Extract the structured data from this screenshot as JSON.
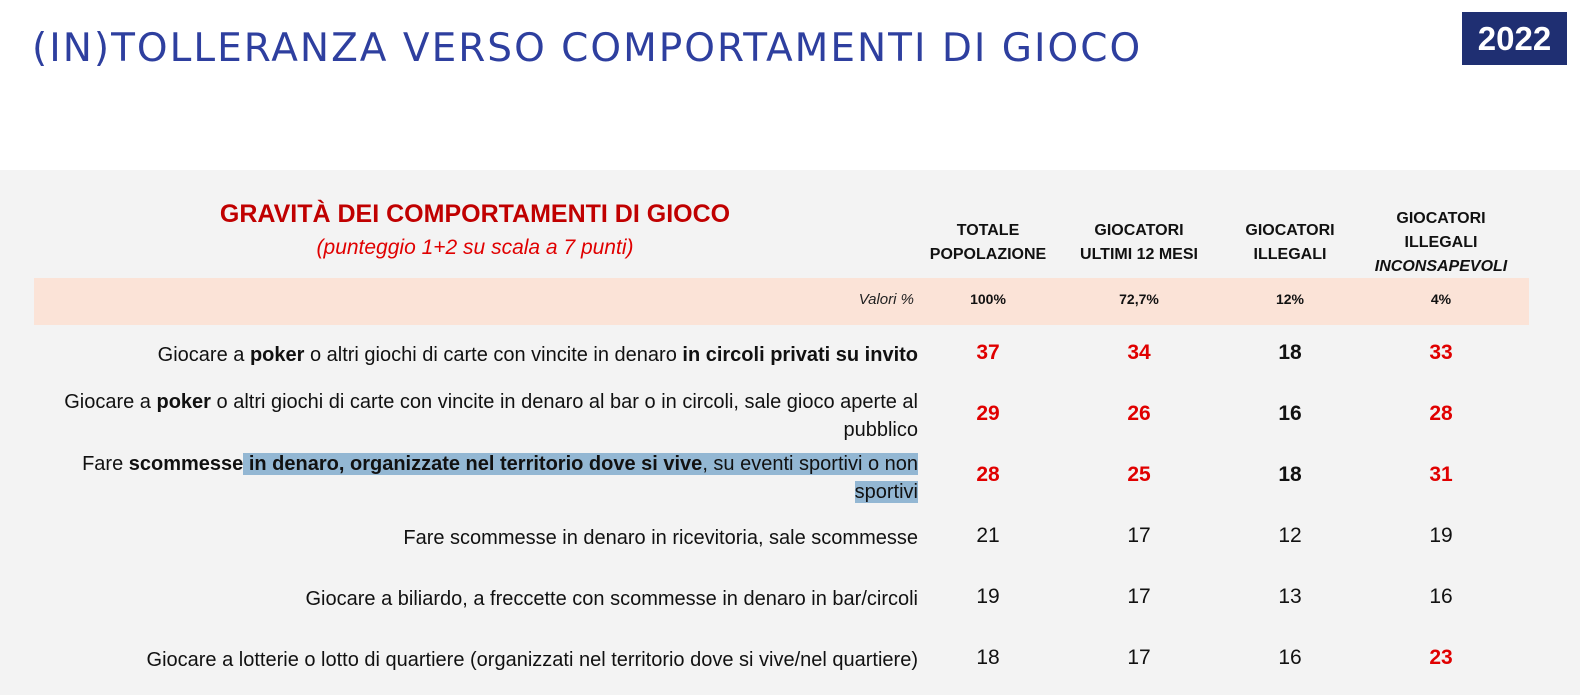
{
  "title": "(IN)TOLLERANZA VERSO COMPORTAMENTI DI GIOCO",
  "year": "2022",
  "section": {
    "title": "GRAVITÀ DEI COMPORTAMENTI DI GIOCO",
    "subtitle": "(punteggio 1+2 su scala a 7 punti)"
  },
  "columns": [
    {
      "line1": "TOTALE",
      "line2": "POPOLAZIONE",
      "line3": "",
      "pct": "100%"
    },
    {
      "line1": "GIOCATORI",
      "line2": "ULTIMI 12 MESI",
      "line3": "",
      "pct": "72,7%"
    },
    {
      "line1": "GIOCATORI",
      "line2": "ILLEGALI",
      "line3": "",
      "pct": "12%"
    },
    {
      "line1": "GIOCATORI",
      "line2": "ILLEGALI",
      "line3": "INCONSAPEVOLI",
      "pct": "4%"
    }
  ],
  "values_label": "Valori %",
  "rows": [
    {
      "label_parts": [
        "Giocare a ",
        "poker",
        " o altri giochi di carte con vincite in denaro ",
        "in circoli privati su invito"
      ],
      "values": [
        "37",
        "34",
        "18",
        "33"
      ],
      "styles": [
        "red",
        "red",
        "bold",
        "red"
      ]
    },
    {
      "label_parts": [
        "Giocare a ",
        "poker",
        " o altri giochi di carte con vincite in denaro al bar o in circoli, sale gioco aperte al pubblico"
      ],
      "values": [
        "29",
        "26",
        "16",
        "28"
      ],
      "styles": [
        "red",
        "red",
        "bold",
        "red"
      ]
    },
    {
      "label_parts": [
        "Fare ",
        "scommesse",
        " in denaro, organizzate nel territorio dove si vive",
        ", su eventi sportivi o non sportivi"
      ],
      "values": [
        "28",
        "25",
        "18",
        "31"
      ],
      "styles": [
        "red",
        "red",
        "bold",
        "red"
      ]
    },
    {
      "label_parts": [
        "Fare scommesse in denaro in ricevitoria, sale scommesse"
      ],
      "values": [
        "21",
        "17",
        "12",
        "19"
      ],
      "styles": [
        "",
        "",
        "",
        ""
      ]
    },
    {
      "label_parts": [
        "Giocare a biliardo, a freccette con scommesse in denaro in bar/circoli"
      ],
      "values": [
        "19",
        "17",
        "13",
        "16"
      ],
      "styles": [
        "",
        "",
        "",
        ""
      ]
    },
    {
      "label_parts": [
        "Giocare a lotterie o lotto di quartiere (organizzati nel territorio dove si vive/nel quartiere)"
      ],
      "values": [
        "18",
        "17",
        "16",
        "23"
      ],
      "styles": [
        "",
        "",
        "",
        "red"
      ]
    }
  ]
}
